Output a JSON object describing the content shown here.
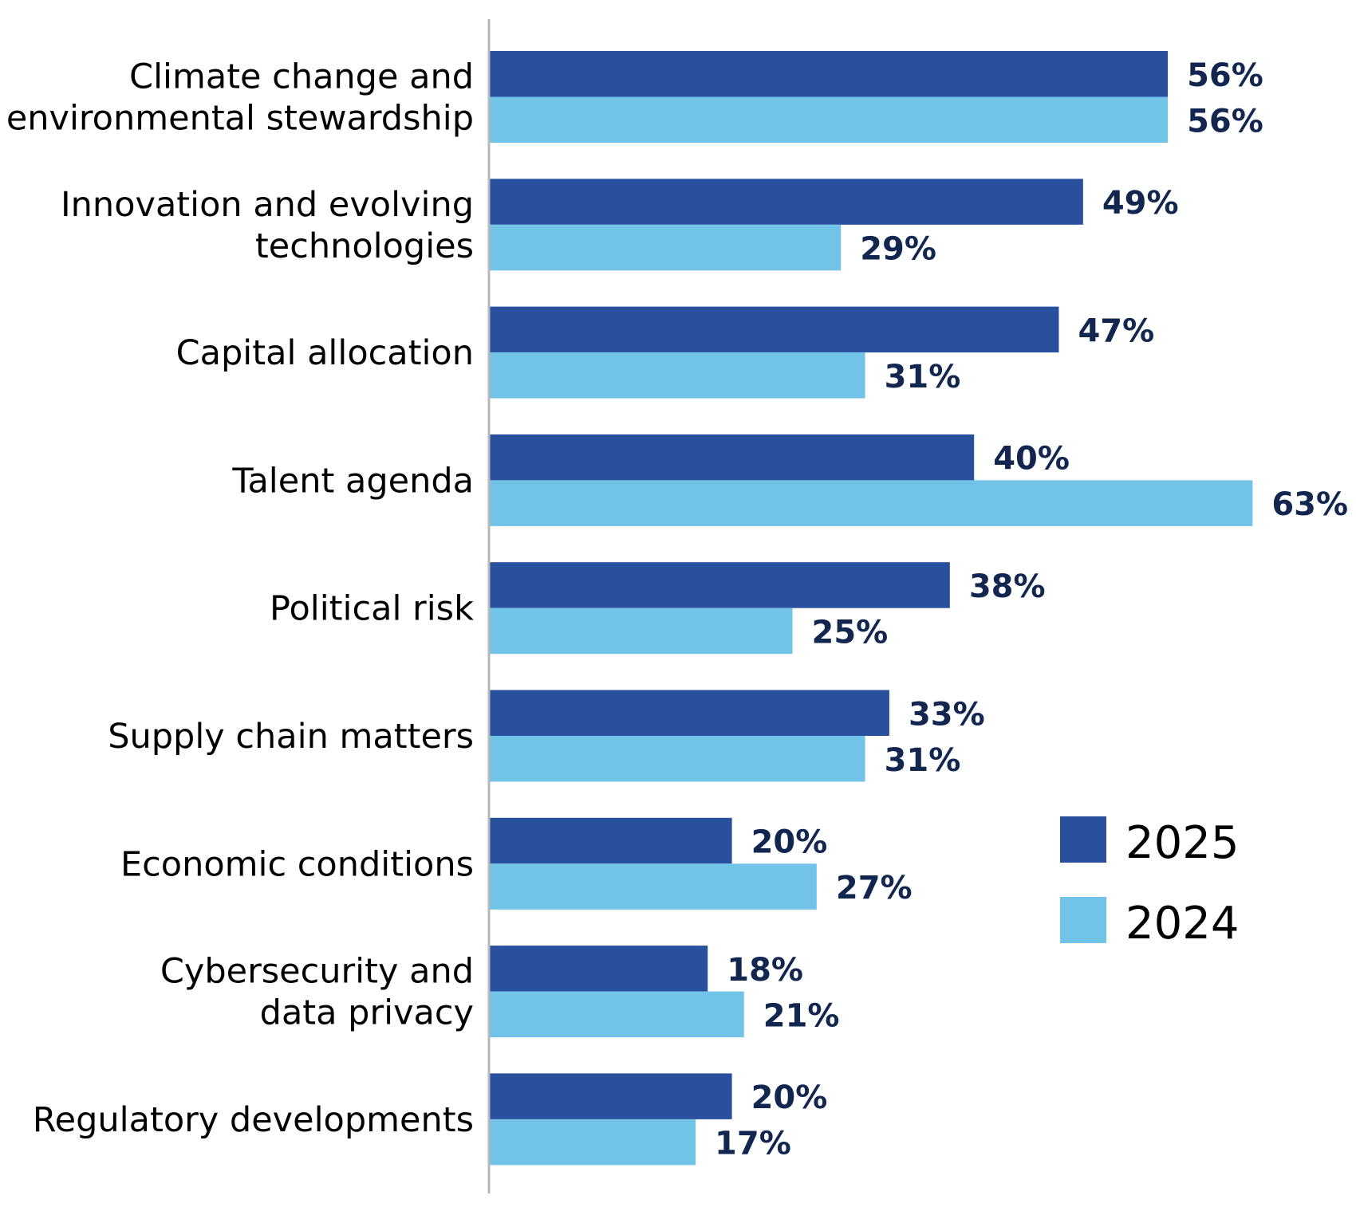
{
  "chart_data": {
    "type": "bar",
    "orientation": "horizontal",
    "title": "",
    "xlabel": "",
    "ylabel": "",
    "xlim": [
      0,
      63
    ],
    "grid": false,
    "value_format": "percent",
    "categories": [
      [
        "Climate change and",
        "environmental stewardship"
      ],
      [
        "Innovation and evolving",
        "technologies"
      ],
      [
        "Capital allocation"
      ],
      [
        "Talent agenda"
      ],
      [
        "Political risk"
      ],
      [
        "Supply chain matters"
      ],
      [
        "Economic conditions"
      ],
      [
        "Cybersecurity and",
        "data privacy"
      ],
      [
        "Regulatory developments"
      ]
    ],
    "series": [
      {
        "name": "2025",
        "color": "#28509c",
        "values": [
          56,
          49,
          47,
          40,
          38,
          33,
          20,
          18,
          20
        ]
      },
      {
        "name": "2024",
        "color": "#71c4e7",
        "values": [
          56,
          29,
          31,
          63,
          25,
          31,
          27,
          21,
          17
        ]
      }
    ],
    "value_label_color": "#12264f",
    "axis_color": "#b8b8b8",
    "legend": {
      "placement": "right-lower",
      "entries": [
        "2025",
        "2024"
      ]
    }
  }
}
